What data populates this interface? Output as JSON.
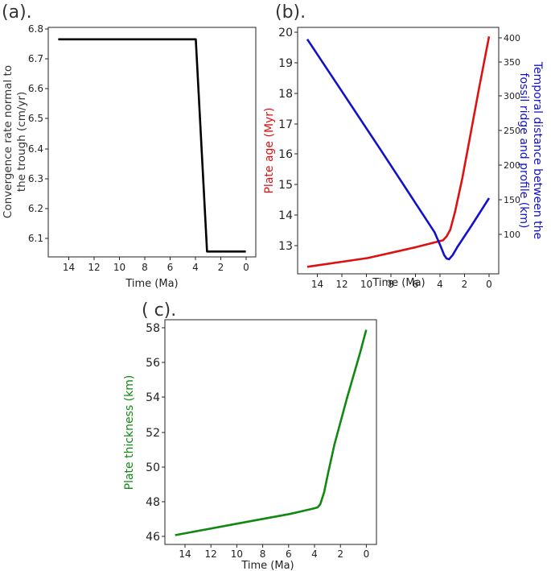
{
  "panels": [
    {
      "label": "(a).",
      "xlabel": "Time (Ma)",
      "ylabel_lines": [
        "Convergence rate normal to",
        "the trough (cm/yr)"
      ],
      "ylabel_color": "#333333",
      "xticks": [
        "14",
        "12",
        "10",
        "8",
        "6",
        "4",
        "2",
        "0"
      ],
      "yticks": [
        "6.1",
        "6.2",
        "6.3",
        "6.4",
        "6.5",
        "6.6",
        "6.7",
        "6.8"
      ]
    },
    {
      "label": "(b).",
      "xlabel": "Time (Ma)",
      "ylabel_lines": [
        "Plate age (Myr)"
      ],
      "ylabel_color": "#dd1111",
      "y2label_lines": [
        "Temporal distance between the",
        "fossil ridge and profile (km)"
      ],
      "y2label_color": "#1111cc",
      "xticks": [
        "14",
        "12",
        "10",
        "8",
        "6",
        "4",
        "2",
        "0"
      ],
      "yticks": [
        "13",
        "14",
        "15",
        "16",
        "17",
        "18",
        "19",
        "20"
      ],
      "y2ticks": [
        "100",
        "150",
        "200",
        "250",
        "300",
        "350",
        "400"
      ]
    },
    {
      "label": "( c).",
      "xlabel": "Time (Ma)",
      "ylabel_lines": [
        "Plate thickness (km)"
      ],
      "ylabel_color": "#118811",
      "xticks": [
        "14",
        "12",
        "10",
        "8",
        "6",
        "4",
        "2",
        "0"
      ],
      "yticks": [
        "46",
        "48",
        "50",
        "52",
        "54",
        "56",
        "58"
      ]
    }
  ],
  "chart_data": [
    {
      "type": "line",
      "xlabel": "Time (Ma)",
      "ylabel": "Convergence rate normal to the trough (cm/yr)",
      "xlim": [
        15.8,
        -0.8
      ],
      "ylim": [
        6.035,
        6.805
      ],
      "x_reversed": true,
      "series": [
        {
          "color": "#000000",
          "x": [
            15,
            4,
            3.1,
            0
          ],
          "y": [
            6.765,
            6.765,
            6.053,
            6.053
          ]
        }
      ]
    },
    {
      "type": "line",
      "xlabel": "Time (Ma)",
      "ylabel": "Plate age (Myr)",
      "y2label": "Temporal distance between the fossil ridge and profile (km)",
      "xlim": [
        15.8,
        -0.8
      ],
      "ylim": [
        12.55,
        20.65
      ],
      "y2lim": [
        57,
        412
      ],
      "x_reversed": true,
      "series": [
        {
          "color": "#dd1111",
          "axis": "left",
          "x": [
            15,
            10,
            6,
            3.8,
            3.5,
            3.2,
            2.8,
            2.2,
            1.5,
            0.8,
            0
          ],
          "y": [
            12.78,
            13.07,
            13.43,
            13.65,
            13.78,
            14.0,
            14.6,
            15.7,
            17.2,
            18.7,
            20.35
          ]
        },
        {
          "color": "#1111cc",
          "axis": "right",
          "x": [
            15,
            12,
            9,
            6,
            4.5,
            4.0,
            3.7,
            3.5,
            3.3,
            3.0,
            2.6,
            1.5,
            0
          ],
          "y": [
            395,
            316,
            237,
            157,
            117,
            97,
            84,
            79,
            78,
            84,
            96,
            125,
            166
          ]
        }
      ]
    },
    {
      "type": "line",
      "xlabel": "Time (Ma)",
      "ylabel": "Plate thickness (km)",
      "xlim": [
        15.8,
        -0.8
      ],
      "ylim": [
        45.6,
        58.9
      ],
      "x_reversed": true,
      "series": [
        {
          "color": "#118811",
          "x": [
            15,
            10,
            6,
            4.0,
            3.8,
            3.6,
            3.3,
            3.0,
            2.5,
            1.5,
            0.5,
            0
          ],
          "y": [
            46.15,
            46.85,
            47.4,
            47.75,
            47.8,
            48.0,
            48.7,
            49.8,
            51.5,
            54.3,
            56.9,
            58.3
          ]
        }
      ]
    }
  ]
}
